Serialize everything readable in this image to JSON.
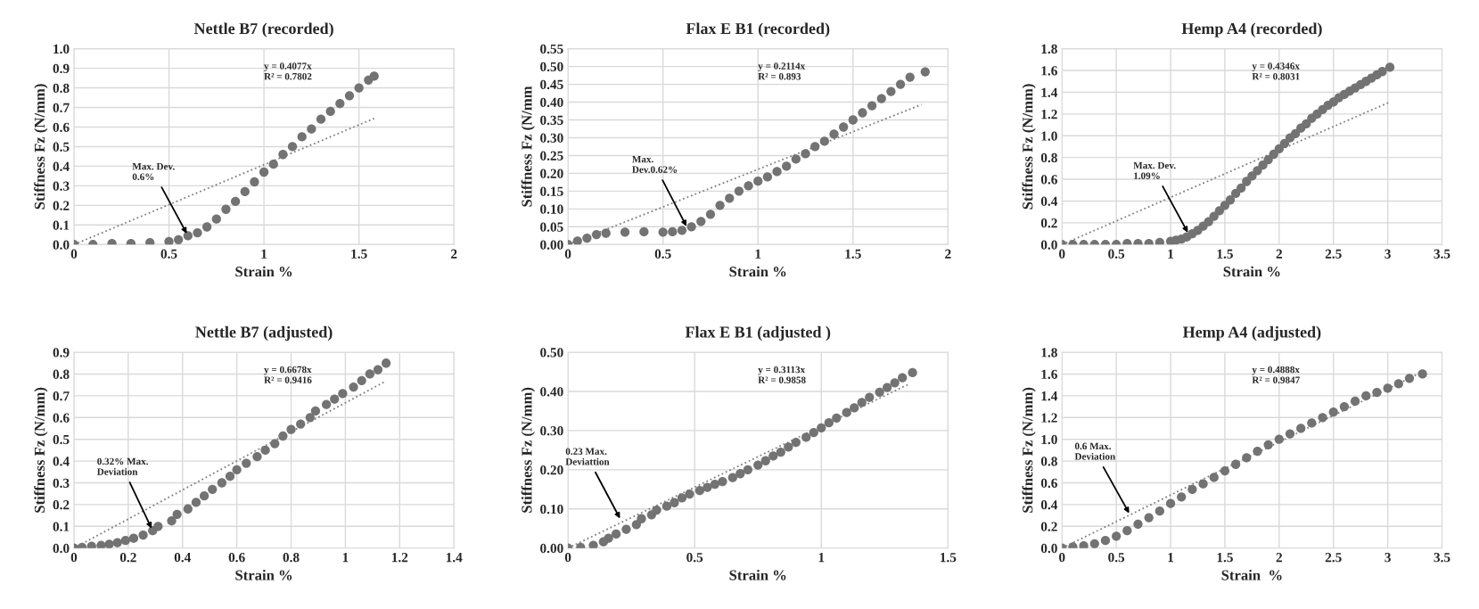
{
  "chart_data": [
    {
      "type": "scatter",
      "title": "Nettle B7 (recorded)",
      "xlabel": "Strain %",
      "ylabel": "Stiffness Fz (N/mm)",
      "xlim": [
        0,
        2
      ],
      "xticks": [
        0,
        0.5,
        1,
        1.5,
        2
      ],
      "ylim": [
        0,
        1.0
      ],
      "yticks": [
        {
          "value": 0,
          "label": "0.0"
        },
        0.1,
        0.2,
        0.3,
        0.4,
        0.5,
        0.6,
        0.7,
        0.8,
        0.9,
        {
          "value": 1.0,
          "label": "1.0"
        }
      ],
      "grid": true,
      "marker": "circle",
      "series": [
        {
          "color": "#737373",
          "x": [
            0,
            0.1,
            0.2,
            0.3,
            0.4,
            0.5,
            0.55,
            0.6,
            0.65,
            0.7,
            0.75,
            0.8,
            0.85,
            0.9,
            0.95,
            1.0,
            1.05,
            1.1,
            1.15,
            1.2,
            1.25,
            1.3,
            1.35,
            1.4,
            1.45,
            1.5,
            1.55,
            1.58
          ],
          "values": [
            0,
            0,
            0.005,
            0.005,
            0.01,
            0.015,
            0.025,
            0.045,
            0.06,
            0.09,
            0.13,
            0.18,
            0.22,
            0.27,
            0.32,
            0.37,
            0.41,
            0.46,
            0.5,
            0.55,
            0.59,
            0.64,
            0.68,
            0.72,
            0.76,
            0.8,
            0.84,
            0.86
          ]
        },
        {
          "type": "line",
          "color": "#808080",
          "line_style": "dotted",
          "marker": "none",
          "x": [
            0,
            1.58
          ],
          "values": [
            0,
            0.644
          ]
        }
      ],
      "annotations": [
        "y = 0.4077x\nR² = 0.7802",
        {
          "text": "Max. Dev.\n0.6%",
          "x": 0.6,
          "y": 0.045
        }
      ]
    },
    {
      "type": "scatter",
      "title": "Flax E B1 (recorded)",
      "xlabel": "Strain %",
      "ylabel": "Stiffness Fz (N/mm",
      "xlim": [
        0,
        2
      ],
      "xticks": [
        0,
        0.5,
        1,
        1.5,
        2
      ],
      "ylim": [
        0,
        0.55
      ],
      "yticks": [
        {
          "value": 0,
          "label": "0.00"
        },
        0.05,
        {
          "value": 0.1,
          "label": "0.10"
        },
        0.15,
        {
          "value": 0.2,
          "label": "0.20"
        },
        0.25,
        {
          "value": 0.3,
          "label": "0.30"
        },
        0.35,
        {
          "value": 0.4,
          "label": "0.40"
        },
        0.45,
        {
          "value": 0.5,
          "label": "0.50"
        },
        0.55
      ],
      "grid": true,
      "marker": "circle",
      "series": [
        {
          "color": "#737373",
          "x": [
            0,
            0.05,
            0.1,
            0.15,
            0.2,
            0.3,
            0.4,
            0.5,
            0.55,
            0.6,
            0.65,
            0.7,
            0.75,
            0.8,
            0.85,
            0.9,
            0.95,
            1.0,
            1.05,
            1.1,
            1.15,
            1.2,
            1.25,
            1.3,
            1.35,
            1.4,
            1.45,
            1.5,
            1.55,
            1.6,
            1.65,
            1.7,
            1.75,
            1.8,
            1.88
          ],
          "values": [
            0,
            0.01,
            0.018,
            0.028,
            0.032,
            0.035,
            0.036,
            0.035,
            0.036,
            0.04,
            0.05,
            0.065,
            0.085,
            0.11,
            0.13,
            0.15,
            0.165,
            0.178,
            0.19,
            0.205,
            0.22,
            0.24,
            0.255,
            0.275,
            0.29,
            0.31,
            0.33,
            0.35,
            0.37,
            0.39,
            0.41,
            0.43,
            0.45,
            0.47,
            0.485
          ]
        },
        {
          "type": "line",
          "color": "#808080",
          "line_style": "dotted",
          "marker": "none",
          "x": [
            0,
            1.86
          ],
          "values": [
            0,
            0.393
          ]
        }
      ],
      "annotations": [
        "y = 0.2114x\nR² = 0.893",
        {
          "text": "Max.\nDev.0.62%",
          "x": 0.63,
          "y": 0.045
        }
      ]
    },
    {
      "type": "scatter",
      "title": "Hemp A4 (recorded)",
      "xlabel": "Strain %",
      "ylabel": "Stiffness Fz (N/mm)",
      "xlim": [
        0,
        3.5
      ],
      "xticks": [
        0,
        0.5,
        1,
        1.5,
        2,
        2.5,
        3,
        3.5
      ],
      "ylim": [
        0,
        1.8
      ],
      "yticks": [
        {
          "value": 0,
          "label": "0.0"
        },
        0.2,
        0.4,
        0.6,
        0.8,
        {
          "value": 1.0,
          "label": "1.0"
        },
        1.2,
        1.4,
        1.6,
        1.8
      ],
      "grid": true,
      "marker": "circle",
      "series": [
        {
          "color": "#737373",
          "x": [
            0,
            0.1,
            0.2,
            0.3,
            0.4,
            0.5,
            0.6,
            0.7,
            0.8,
            0.9,
            1.0,
            1.05,
            1.1,
            1.15,
            1.2,
            1.25,
            1.3,
            1.35,
            1.4,
            1.45,
            1.5,
            1.55,
            1.6,
            1.65,
            1.7,
            1.75,
            1.8,
            1.85,
            1.9,
            1.95,
            2.0,
            2.05,
            2.1,
            2.15,
            2.2,
            2.25,
            2.3,
            2.35,
            2.4,
            2.45,
            2.5,
            2.55,
            2.6,
            2.65,
            2.7,
            2.75,
            2.8,
            2.85,
            2.9,
            2.95,
            3.02
          ],
          "values": [
            0,
            0,
            0,
            0,
            0,
            0,
            0.01,
            0.01,
            0.01,
            0.02,
            0.03,
            0.04,
            0.05,
            0.07,
            0.1,
            0.13,
            0.17,
            0.21,
            0.26,
            0.31,
            0.36,
            0.41,
            0.47,
            0.52,
            0.58,
            0.63,
            0.68,
            0.73,
            0.78,
            0.83,
            0.88,
            0.93,
            0.98,
            1.02,
            1.07,
            1.11,
            1.16,
            1.2,
            1.24,
            1.28,
            1.31,
            1.35,
            1.38,
            1.41,
            1.44,
            1.47,
            1.5,
            1.53,
            1.56,
            1.59,
            1.63
          ]
        },
        {
          "type": "line",
          "color": "#808080",
          "line_style": "dotted",
          "marker": "none",
          "x": [
            0,
            3.02
          ],
          "values": [
            0,
            1.31
          ]
        }
      ],
      "annotations": [
        "y = 0.4346x\nR² = 0.8031",
        {
          "text": "Max. Dev.\n1.09%",
          "x": 1.17,
          "y": 0.09
        }
      ]
    },
    {
      "type": "scatter",
      "title": "Nettle B7 (adjusted)",
      "xlabel": "Strain %",
      "ylabel": "Stiffness Fz (N/mm)",
      "xlim": [
        0,
        1.4
      ],
      "xticks": [
        0,
        0.2,
        0.4,
        0.6,
        0.8,
        1,
        1.2,
        1.4
      ],
      "ylim": [
        0,
        0.9
      ],
      "yticks": [
        {
          "value": 0,
          "label": "0.0"
        },
        0.1,
        0.2,
        0.3,
        0.4,
        0.5,
        0.6,
        0.7,
        0.8,
        0.9
      ],
      "grid": true,
      "marker": "circle",
      "series": [
        {
          "color": "#737373",
          "x": [
            0,
            0.03,
            0.065,
            0.1,
            0.13,
            0.16,
            0.19,
            0.22,
            0.255,
            0.29,
            0.31,
            0.36,
            0.38,
            0.42,
            0.45,
            0.48,
            0.51,
            0.545,
            0.575,
            0.6,
            0.635,
            0.675,
            0.705,
            0.74,
            0.77,
            0.8,
            0.835,
            0.87,
            0.89,
            0.93,
            0.96,
            0.99,
            1.03,
            1.06,
            1.09,
            1.12,
            1.15
          ],
          "values": [
            0,
            0.003,
            0.008,
            0.012,
            0.018,
            0.025,
            0.035,
            0.045,
            0.06,
            0.08,
            0.1,
            0.125,
            0.155,
            0.18,
            0.21,
            0.24,
            0.27,
            0.3,
            0.33,
            0.36,
            0.39,
            0.42,
            0.45,
            0.48,
            0.515,
            0.545,
            0.57,
            0.6,
            0.63,
            0.66,
            0.685,
            0.71,
            0.74,
            0.77,
            0.8,
            0.82,
            0.85
          ]
        },
        {
          "type": "line",
          "color": "#808080",
          "line_style": "dotted",
          "marker": "none",
          "x": [
            0,
            1.15
          ],
          "values": [
            0,
            0.768
          ]
        }
      ],
      "annotations": [
        "y = 0.6678x\nR² = 0.9416",
        {
          "text": "0.32% Max.\nDeviation",
          "x": 0.29,
          "y": 0.08
        }
      ]
    },
    {
      "type": "scatter",
      "title": "Flax E B1 (adjusted )",
      "xlabel": "Strain %",
      "ylabel": "Stiffness Fz (N/mm)",
      "xlim": [
        0,
        1.5
      ],
      "xticks": [
        0,
        0.5,
        1,
        1.5
      ],
      "ylim": [
        0,
        0.5
      ],
      "yticks": [
        {
          "value": 0,
          "label": "0.00"
        },
        {
          "value": 0.1,
          "label": "0.10"
        },
        {
          "value": 0.2,
          "label": "0.20"
        },
        {
          "value": 0.3,
          "label": "0.30"
        },
        {
          "value": 0.4,
          "label": "0.40"
        },
        {
          "value": 0.5,
          "label": "0.50"
        }
      ],
      "grid": true,
      "marker": "circle",
      "series": [
        {
          "color": "#737373",
          "x": [
            0,
            0.05,
            0.1,
            0.14,
            0.16,
            0.19,
            0.23,
            0.27,
            0.29,
            0.33,
            0.35,
            0.39,
            0.42,
            0.45,
            0.48,
            0.52,
            0.55,
            0.58,
            0.61,
            0.65,
            0.68,
            0.71,
            0.75,
            0.78,
            0.81,
            0.84,
            0.87,
            0.9,
            0.94,
            0.97,
            1.0,
            1.03,
            1.06,
            1.1,
            1.13,
            1.16,
            1.19,
            1.23,
            1.26,
            1.29,
            1.32,
            1.36
          ],
          "values": [
            0,
            0.002,
            0.007,
            0.016,
            0.025,
            0.036,
            0.048,
            0.06,
            0.075,
            0.085,
            0.097,
            0.107,
            0.116,
            0.128,
            0.138,
            0.147,
            0.155,
            0.163,
            0.17,
            0.18,
            0.19,
            0.2,
            0.212,
            0.223,
            0.235,
            0.245,
            0.258,
            0.27,
            0.283,
            0.295,
            0.307,
            0.32,
            0.332,
            0.346,
            0.358,
            0.372,
            0.385,
            0.398,
            0.41,
            0.422,
            0.435,
            0.448
          ]
        },
        {
          "type": "line",
          "color": "#808080",
          "line_style": "dotted",
          "marker": "none",
          "x": [
            0,
            1.35
          ],
          "values": [
            0,
            0.42
          ]
        }
      ],
      "annotations": [
        "y = 0.3113x\nR² = 0.9858",
        {
          "text": "0.23 Max.\nDeviattion",
          "x": 0.21,
          "y": 0.07
        }
      ]
    },
    {
      "type": "scatter",
      "title": "Hemp A4 (adjusted)",
      "xlabel": "Strain  %",
      "ylabel": "Stiffness Fz (N/mm)",
      "xlim": [
        0,
        3.5
      ],
      "xticks": [
        0,
        0.5,
        1,
        1.5,
        2,
        2.5,
        3,
        3.5
      ],
      "ylim": [
        0,
        1.8
      ],
      "yticks": [
        {
          "value": 0,
          "label": "0.0"
        },
        0.2,
        0.4,
        0.6,
        0.8,
        {
          "value": 1.0,
          "label": "1.0"
        },
        1.2,
        1.4,
        1.6,
        1.8
      ],
      "grid": true,
      "marker": "circle",
      "series": [
        {
          "color": "#737373",
          "x": [
            0,
            0.1,
            0.2,
            0.3,
            0.4,
            0.5,
            0.6,
            0.7,
            0.8,
            0.9,
            1.0,
            1.1,
            1.2,
            1.3,
            1.4,
            1.5,
            1.6,
            1.7,
            1.8,
            1.9,
            2.0,
            2.1,
            2.2,
            2.3,
            2.4,
            2.5,
            2.6,
            2.7,
            2.8,
            2.9,
            3.0,
            3.1,
            3.2,
            3.32
          ],
          "values": [
            0,
            0.01,
            0.02,
            0.04,
            0.07,
            0.11,
            0.16,
            0.22,
            0.28,
            0.34,
            0.41,
            0.47,
            0.54,
            0.59,
            0.65,
            0.71,
            0.77,
            0.83,
            0.89,
            0.95,
            1.0,
            1.05,
            1.1,
            1.15,
            1.2,
            1.25,
            1.3,
            1.35,
            1.4,
            1.43,
            1.47,
            1.51,
            1.56,
            1.6
          ]
        },
        {
          "type": "line",
          "color": "#808080",
          "line_style": "dotted",
          "marker": "none",
          "x": [
            0,
            3.3
          ],
          "values": [
            0,
            1.61
          ]
        }
      ],
      "annotations": [
        "y = 0.4888x\nR² = 0.9847",
        {
          "text": "0.6 Max.\nDeviation",
          "x": 0.63,
          "y": 0.3
        }
      ]
    }
  ]
}
